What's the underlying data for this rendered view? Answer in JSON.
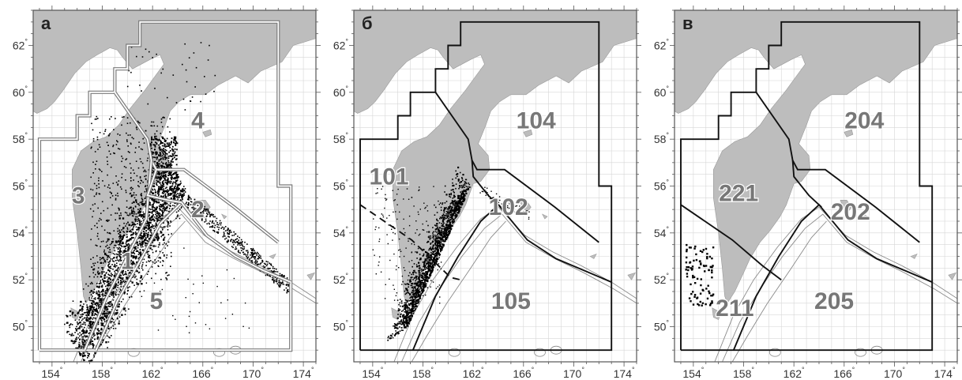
{
  "axes": {
    "x_ticks": [
      "154",
      "158",
      "162",
      "166",
      "170",
      "174"
    ],
    "y_ticks": [
      "50",
      "52",
      "54",
      "56",
      "58",
      "60",
      "62"
    ],
    "degree_symbol": "°",
    "lon_range": [
      152.5,
      175
    ],
    "lat_range": [
      48.5,
      63.5
    ]
  },
  "colors": {
    "land": "#bdbdbd",
    "grid": "#d6d6d6",
    "boundary": "#111111",
    "double_boundary": "#7a7a7a",
    "events": "#000000"
  },
  "panels": [
    {
      "id": "a",
      "letter": "а",
      "zones": [
        {
          "label": "1",
          "lon": 160.0,
          "lat": 52.8
        },
        {
          "label": "2",
          "lon": 165.6,
          "lat": 55.0
        },
        {
          "label": "3",
          "lon": 156.1,
          "lat": 55.6
        },
        {
          "label": "4",
          "lon": 165.6,
          "lat": 58.8
        },
        {
          "label": "5",
          "lon": 162.3,
          "lat": 51.1
        }
      ]
    },
    {
      "id": "b",
      "letter": "б",
      "zones": [
        {
          "label": "101",
          "lon": 155.3,
          "lat": 56.4
        },
        {
          "label": "102",
          "lon": 164.8,
          "lat": 55.1
        },
        {
          "label": "104",
          "lon": 167.0,
          "lat": 58.8
        },
        {
          "label": "105",
          "lon": 165.0,
          "lat": 51.1
        }
      ]
    },
    {
      "id": "c",
      "letter": "в",
      "zones": [
        {
          "label": "221",
          "lon": 157.6,
          "lat": 55.7
        },
        {
          "label": "202",
          "lon": 166.5,
          "lat": 54.9
        },
        {
          "label": "204",
          "lon": 167.6,
          "lat": 58.8
        },
        {
          "label": "211",
          "lon": 157.3,
          "lat": 50.8
        },
        {
          "label": "205",
          "lon": 165.2,
          "lat": 51.1
        }
      ]
    }
  ]
}
